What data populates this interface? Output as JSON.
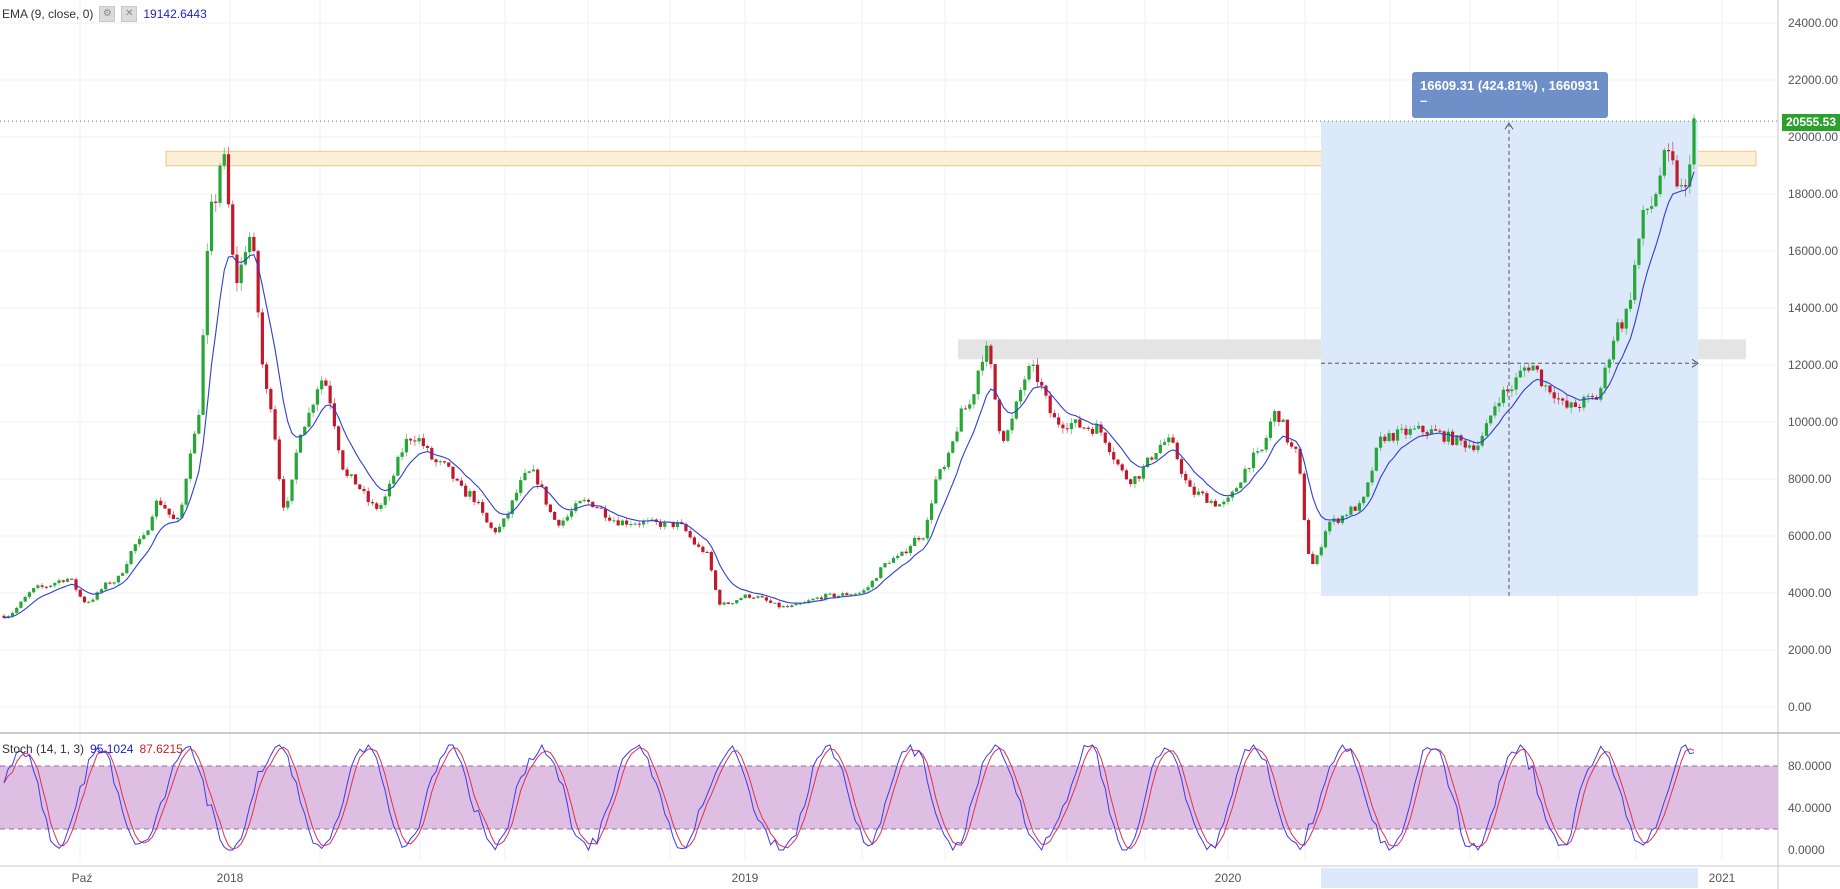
{
  "indicators": {
    "ema": {
      "label": "EMA (9, close, 0)",
      "value": "19142.6443",
      "settings_icon": "gear-icon",
      "close_icon": "close-icon"
    },
    "stoch": {
      "label": "Stoch (14, 1, 3)",
      "k_value": "95.1024",
      "d_value": "87.6215"
    }
  },
  "measure": {
    "line1": "16609.31 (424.81%) , 1660931",
    "line2": "–"
  },
  "price_label": "20555.53",
  "colors": {
    "up": "#26a637",
    "down": "#c2182b",
    "ema": "#2f3fd1",
    "stoch_k": "#3b3bf0",
    "stoch_d": "#e0304f",
    "measure_box": "#dce9fb",
    "resistance_zone": "#fcefd8",
    "mid_zone": "#e4e4e4",
    "stoch_band": "#dbb7e0"
  },
  "chart_data": [
    {
      "type": "candlestick",
      "title": "",
      "y_ticks": [
        "24000.00",
        "22000.00",
        "20000.00",
        "18000.00",
        "16000.00",
        "14000.00",
        "12000.00",
        "10000.00",
        "8000.00",
        "6000.00",
        "4000.00",
        "2000.00",
        "0.00"
      ],
      "ylim": [
        -1000,
        25000
      ],
      "x_ticks": [
        "Paź",
        "2018",
        "2019",
        "2020",
        "2021"
      ],
      "last_price": 20555.53,
      "zones": [
        {
          "kind": "resistance",
          "from": 19200,
          "to": 19500
        },
        {
          "kind": "range",
          "from": 12200,
          "to": 12900
        }
      ],
      "measurement": {
        "from_price": 3900,
        "to_price": 20555,
        "change": 16609.31,
        "change_pct": 424.81
      },
      "anchors": [
        {
          "t": 0,
          "p": 3200
        },
        {
          "t": 0.02,
          "p": 4200
        },
        {
          "t": 0.035,
          "p": 4500
        },
        {
          "t": 0.045,
          "p": 3700
        },
        {
          "t": 0.06,
          "p": 4400
        },
        {
          "t": 0.075,
          "p": 5800
        },
        {
          "t": 0.085,
          "p": 7200
        },
        {
          "t": 0.095,
          "p": 6500
        },
        {
          "t": 0.105,
          "p": 9500
        },
        {
          "t": 0.115,
          "p": 17500
        },
        {
          "t": 0.12,
          "p": 19300
        },
        {
          "t": 0.128,
          "p": 15000
        },
        {
          "t": 0.135,
          "p": 16500
        },
        {
          "t": 0.145,
          "p": 11000
        },
        {
          "t": 0.155,
          "p": 7000
        },
        {
          "t": 0.165,
          "p": 10000
        },
        {
          "t": 0.175,
          "p": 11500
        },
        {
          "t": 0.19,
          "p": 8000
        },
        {
          "t": 0.205,
          "p": 7000
        },
        {
          "t": 0.225,
          "p": 9500
        },
        {
          "t": 0.24,
          "p": 8500
        },
        {
          "t": 0.255,
          "p": 7500
        },
        {
          "t": 0.27,
          "p": 6200
        },
        {
          "t": 0.29,
          "p": 8200
        },
        {
          "t": 0.305,
          "p": 6500
        },
        {
          "t": 0.32,
          "p": 7200
        },
        {
          "t": 0.34,
          "p": 6500
        },
        {
          "t": 0.37,
          "p": 6400
        },
        {
          "t": 0.385,
          "p": 5500
        },
        {
          "t": 0.395,
          "p": 3600
        },
        {
          "t": 0.41,
          "p": 3900
        },
        {
          "t": 0.43,
          "p": 3500
        },
        {
          "t": 0.455,
          "p": 3900
        },
        {
          "t": 0.47,
          "p": 4000
        },
        {
          "t": 0.49,
          "p": 5200
        },
        {
          "t": 0.505,
          "p": 6000
        },
        {
          "t": 0.515,
          "p": 8200
        },
        {
          "t": 0.53,
          "p": 10500
        },
        {
          "t": 0.54,
          "p": 12500
        },
        {
          "t": 0.55,
          "p": 9500
        },
        {
          "t": 0.565,
          "p": 11800
        },
        {
          "t": 0.58,
          "p": 10000
        },
        {
          "t": 0.6,
          "p": 9800
        },
        {
          "t": 0.62,
          "p": 8000
        },
        {
          "t": 0.64,
          "p": 9300
        },
        {
          "t": 0.655,
          "p": 7500
        },
        {
          "t": 0.67,
          "p": 7100
        },
        {
          "t": 0.69,
          "p": 8800
        },
        {
          "t": 0.7,
          "p": 10300
        },
        {
          "t": 0.71,
          "p": 9000
        },
        {
          "t": 0.72,
          "p": 5000
        },
        {
          "t": 0.73,
          "p": 6500
        },
        {
          "t": 0.745,
          "p": 7000
        },
        {
          "t": 0.76,
          "p": 9500
        },
        {
          "t": 0.78,
          "p": 9700
        },
        {
          "t": 0.81,
          "p": 9200
        },
        {
          "t": 0.825,
          "p": 11000
        },
        {
          "t": 0.84,
          "p": 12000
        },
        {
          "t": 0.85,
          "p": 11200
        },
        {
          "t": 0.86,
          "p": 10500
        },
        {
          "t": 0.875,
          "p": 10800
        },
        {
          "t": 0.89,
          "p": 13500
        },
        {
          "t": 0.905,
          "p": 17500
        },
        {
          "t": 0.915,
          "p": 19200
        },
        {
          "t": 0.925,
          "p": 18000
        },
        {
          "t": 0.93,
          "p": 20555
        }
      ]
    },
    {
      "type": "line",
      "title": "",
      "y_ticks": [
        "80.0000",
        "40.0000",
        "0.0000"
      ],
      "ylim": [
        -5,
        110
      ],
      "band": [
        20,
        80
      ],
      "series": [
        {
          "values_hint": "stochastic %K oscillating 0-100"
        },
        {
          "values_hint": "stochastic %D smoothed"
        }
      ]
    }
  ]
}
